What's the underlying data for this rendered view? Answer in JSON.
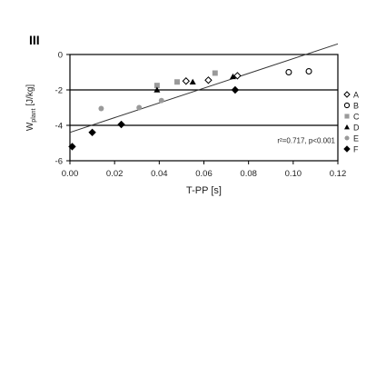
{
  "panel_label": "III",
  "chart_data": {
    "type": "scatter",
    "xlabel": "T-PP [s]",
    "ylabel_main": "W",
    "ylabel_sub": "plant",
    "ylabel_unit": " [J/kg]",
    "xlim": [
      0,
      0.12
    ],
    "ylim": [
      -6,
      0
    ],
    "xticks": [
      "0.00",
      "0.02",
      "0.04",
      "0.06",
      "0.08",
      "0.10",
      "0.12"
    ],
    "xtick_values": [
      0,
      0.02,
      0.04,
      0.06,
      0.08,
      0.1,
      0.12
    ],
    "yticks": [
      "0",
      "-2",
      "-4",
      "-6"
    ],
    "ytick_values": [
      0,
      -2,
      -4,
      -6
    ],
    "hlines": [
      -2,
      -4
    ],
    "annotation": "r²=0.717, p<0.001",
    "fit_line": {
      "x": [
        0,
        0.12
      ],
      "y": [
        -4.4,
        0.6
      ]
    },
    "legend_position": "right",
    "series": [
      {
        "name": "A",
        "marker": "diamond-open",
        "points": [
          [
            0.052,
            -1.5
          ],
          [
            0.062,
            -1.45
          ],
          [
            0.075,
            -1.2
          ]
        ]
      },
      {
        "name": "B",
        "marker": "circle-open",
        "points": [
          [
            0.098,
            -1.0
          ],
          [
            0.107,
            -0.95
          ]
        ]
      },
      {
        "name": "C",
        "marker": "square-gray",
        "points": [
          [
            0.039,
            -1.75
          ],
          [
            0.048,
            -1.55
          ],
          [
            0.065,
            -1.05
          ]
        ]
      },
      {
        "name": "D",
        "marker": "triangle-black",
        "points": [
          [
            0.039,
            -2.0
          ],
          [
            0.055,
            -1.55
          ],
          [
            0.073,
            -1.25
          ]
        ]
      },
      {
        "name": "E",
        "marker": "circle-gray",
        "points": [
          [
            0.014,
            -3.05
          ],
          [
            0.031,
            -3.0
          ],
          [
            0.041,
            -2.6
          ]
        ]
      },
      {
        "name": "F",
        "marker": "diamond-black",
        "points": [
          [
            0.001,
            -5.2
          ],
          [
            0.01,
            -4.4
          ],
          [
            0.023,
            -3.95
          ],
          [
            0.074,
            -2.0
          ]
        ]
      }
    ]
  }
}
